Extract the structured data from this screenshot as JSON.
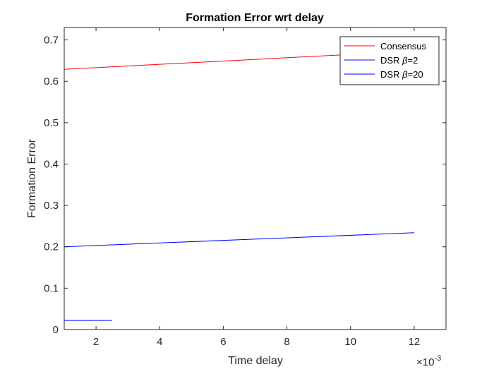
{
  "chart_data": {
    "type": "line",
    "title": "Formation Error wrt delay",
    "xlabel": "Time delay",
    "ylabel": "Formation Error",
    "x_exponent_label": "×10",
    "x_exponent_power": "-3",
    "xlim": [
      1,
      13
    ],
    "ylim": [
      0,
      0.73
    ],
    "xticks": [
      2,
      4,
      6,
      8,
      10,
      12
    ],
    "yticks": [
      0,
      0.1,
      0.2,
      0.3,
      0.4,
      0.5,
      0.6,
      0.7
    ],
    "xtick_labels": [
      "2",
      "4",
      "6",
      "8",
      "10",
      "12"
    ],
    "ytick_labels": [
      "0",
      "0.1",
      "0.2",
      "0.3",
      "0.4",
      "0.5",
      "0.6",
      "0.7"
    ],
    "grid": false,
    "legend_location": "top-right",
    "series": [
      {
        "name": "Consensus",
        "color": "#ff0000",
        "x": [
          1,
          12
        ],
        "y": [
          0.629,
          0.673
        ]
      },
      {
        "name": "DSR β=2",
        "color": "#0000ff",
        "x": [
          1,
          12
        ],
        "y": [
          0.2,
          0.234
        ]
      },
      {
        "name": "DSR β=20",
        "color": "#0000ff",
        "x": [
          1,
          2.5
        ],
        "y": [
          0.022,
          0.022
        ]
      }
    ],
    "legend": [
      {
        "prefix": "Consensus",
        "beta": "",
        "suffix": ""
      },
      {
        "prefix": "DSR ",
        "beta": "β",
        "suffix": "=2"
      },
      {
        "prefix": "DSR ",
        "beta": "β",
        "suffix": "=20"
      }
    ]
  }
}
